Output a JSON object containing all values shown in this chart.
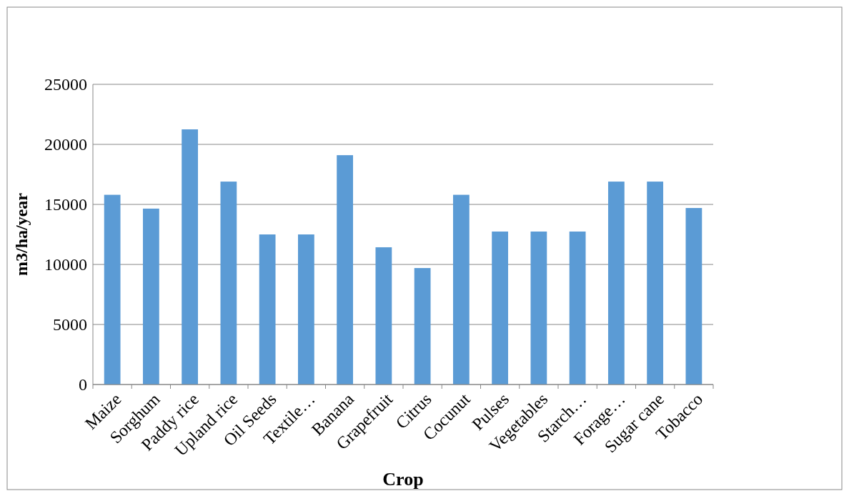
{
  "chart_data": {
    "type": "bar",
    "xlabel": "Crop",
    "ylabel": "m3/ha/year",
    "categories": [
      "Maize",
      "Sorghum",
      "Paddy rice",
      "Upland rice",
      "Oil Seeds",
      "Textile…",
      "Banana",
      "Grapefruit",
      "Citrus",
      "Cocunut",
      "Pulses",
      "Vegetables",
      "Starch…",
      "Forage…",
      "Sugar cane",
      "Tobacco"
    ],
    "values": [
      15800,
      14650,
      21250,
      16900,
      12500,
      12500,
      19100,
      11430,
      9700,
      15800,
      12740,
      12740,
      12740,
      16900,
      16900,
      14700
    ],
    "color": "#5b9bd5",
    "ylim": [
      0,
      25000
    ],
    "yticks": [
      0,
      5000,
      10000,
      15000,
      20000,
      25000
    ],
    "grid": "y"
  }
}
